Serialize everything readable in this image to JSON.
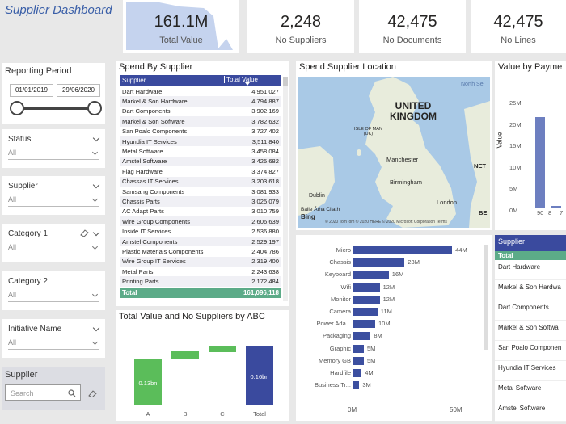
{
  "dashboard": {
    "title": "Supplier Dashboard"
  },
  "kpis": [
    {
      "value": "161.1M",
      "label": "Total Value"
    },
    {
      "value": "2,248",
      "label": "No Suppliers"
    },
    {
      "value": "42,475",
      "label": "No Documents"
    },
    {
      "value": "42,475",
      "label": "No Lines"
    }
  ],
  "slicers": {
    "reporting_period": {
      "title": "Reporting Period",
      "start": "01/01/2019",
      "end": "29/06/2020"
    },
    "status": {
      "title": "Status",
      "value": "All"
    },
    "supplier": {
      "title": "Supplier",
      "value": "All"
    },
    "category1": {
      "title": "Category 1",
      "value": "All"
    },
    "category2": {
      "title": "Category 2",
      "value": "All"
    },
    "initiative": {
      "title": "Initiative Name",
      "value": "All"
    },
    "supplier_search": {
      "title": "Supplier",
      "placeholder": "Search"
    }
  },
  "spend_table": {
    "title": "Spend By Supplier",
    "headers": [
      "Supplier",
      "Total Value"
    ],
    "rows": [
      [
        "Dart Hardware",
        "4,951,027"
      ],
      [
        "Markel & Son Hardware",
        "4,794,887"
      ],
      [
        "Dart Components",
        "3,902,169"
      ],
      [
        "Markel & Son Software",
        "3,782,632"
      ],
      [
        "San Poalo Components",
        "3,727,402"
      ],
      [
        "Hyundia IT Services",
        "3,511,840"
      ],
      [
        "Metal Software",
        "3,458,084"
      ],
      [
        "Amstel Software",
        "3,425,682"
      ],
      [
        "Flag Hardware",
        "3,374,827"
      ],
      [
        "Chassas IT Services",
        "3,203,618"
      ],
      [
        "Samsang Components",
        "3,081,933"
      ],
      [
        "Chassis Parts",
        "3,025,079"
      ],
      [
        "AC Adapt Parts",
        "3,010,759"
      ],
      [
        "Wire Group Components",
        "2,606,639"
      ],
      [
        "Inside IT Services",
        "2,536,880"
      ],
      [
        "Amstel Components",
        "2,529,197"
      ],
      [
        "Plastic Materials Components",
        "2,404,786"
      ],
      [
        "Wire Group IT Services",
        "2,319,400"
      ],
      [
        "Metal Parts",
        "2,243,638"
      ],
      [
        "Printing Parts",
        "2,172,484"
      ]
    ],
    "total_label": "Total",
    "total_value": "161,096,118"
  },
  "map": {
    "title": "Spend  Supplier Location",
    "labels": {
      "country": "UNITED\nKINGDOM",
      "isle": "ISLE OF MAN\n(UK)",
      "dublin": "Dublin",
      "baile": "Baile Átha Cliath",
      "manchester": "Manchester",
      "birmingham": "Birmingham",
      "london": "London",
      "north_sea": "North Se",
      "net": "NET",
      "be": "BE"
    },
    "attribution": "© 2020 TomTom © 2020 HERE © 2020 Microsoft Corporation  Terms",
    "bing": "Bing"
  },
  "value_by_payment": {
    "title": "Value by Payme",
    "ylabel": "Value",
    "yticks": [
      "25M",
      "20M",
      "15M",
      "10M",
      "5M",
      "0M"
    ],
    "xticks": [
      "90",
      "8",
      "7"
    ]
  },
  "category_chart": {
    "rows": [
      {
        "label": "Micro",
        "value": 44,
        "text": "44M"
      },
      {
        "label": "Chassis",
        "value": 23,
        "text": "23M"
      },
      {
        "label": "Keyboard",
        "value": 16,
        "text": "16M"
      },
      {
        "label": "Wifi",
        "value": 12,
        "text": "12M"
      },
      {
        "label": "Monitor",
        "value": 12,
        "text": "12M"
      },
      {
        "label": "Camera",
        "value": 11,
        "text": "11M"
      },
      {
        "label": "Power Ada...",
        "value": 10,
        "text": "10M"
      },
      {
        "label": "Packaging",
        "value": 8,
        "text": "8M"
      },
      {
        "label": "Graphic",
        "value": 5,
        "text": "5M"
      },
      {
        "label": "Memory GB",
        "value": 5,
        "text": "5M"
      },
      {
        "label": "Hardfile",
        "value": 4,
        "text": "4M"
      },
      {
        "label": "Business Tr...",
        "value": 3,
        "text": "3M"
      }
    ],
    "max": 50,
    "xticks": [
      "0M",
      "50M"
    ]
  },
  "abc_chart": {
    "title": "Total Value and No Suppliers by ABC",
    "categories": [
      "A",
      "B",
      "C",
      "Total"
    ],
    "bar_labels": [
      "0.13bn",
      "0.16bn"
    ]
  },
  "supplier_list": {
    "header": "Supplier",
    "total_label": "Total",
    "items": [
      "Dart Hardware",
      "Markel & Son Hardwa",
      "Dart Components",
      "Markel & Son Softwa",
      "San Poalo Componen",
      "Hyundia IT Services",
      "Metal Software",
      "Amstel Software"
    ]
  },
  "colors": {
    "accent": "#3c4fa0",
    "green": "#5bbd5a",
    "teal": "#5aaa88",
    "title": "#3a5fa8"
  }
}
